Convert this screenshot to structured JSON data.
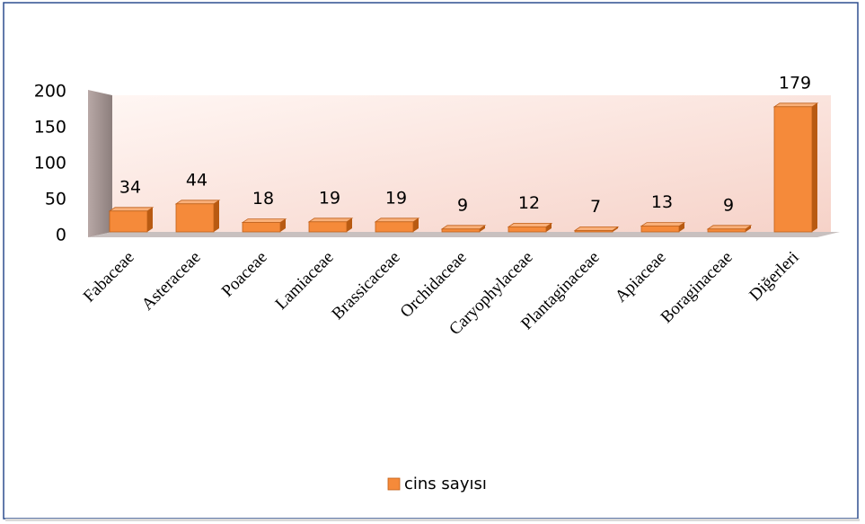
{
  "chart_data": {
    "type": "bar3d",
    "categories": [
      "Fabaceae",
      "Asteraceae",
      "Poaceae",
      "Lamiaceae",
      "Brassicaceae",
      "Orchidaceae",
      "Caryophylaceae",
      "Plantaginaceae",
      "Apiaceae",
      "Boraginaceae",
      "Diğerleri"
    ],
    "series": [
      {
        "name": "cins sayısı",
        "color": "#f58a3a",
        "values": [
          34,
          44,
          18,
          19,
          19,
          9,
          12,
          7,
          13,
          9,
          179
        ]
      }
    ],
    "ylim": [
      0,
      200
    ],
    "yticks": [
      0,
      50,
      100,
      150,
      200
    ],
    "legend": "bottom"
  }
}
